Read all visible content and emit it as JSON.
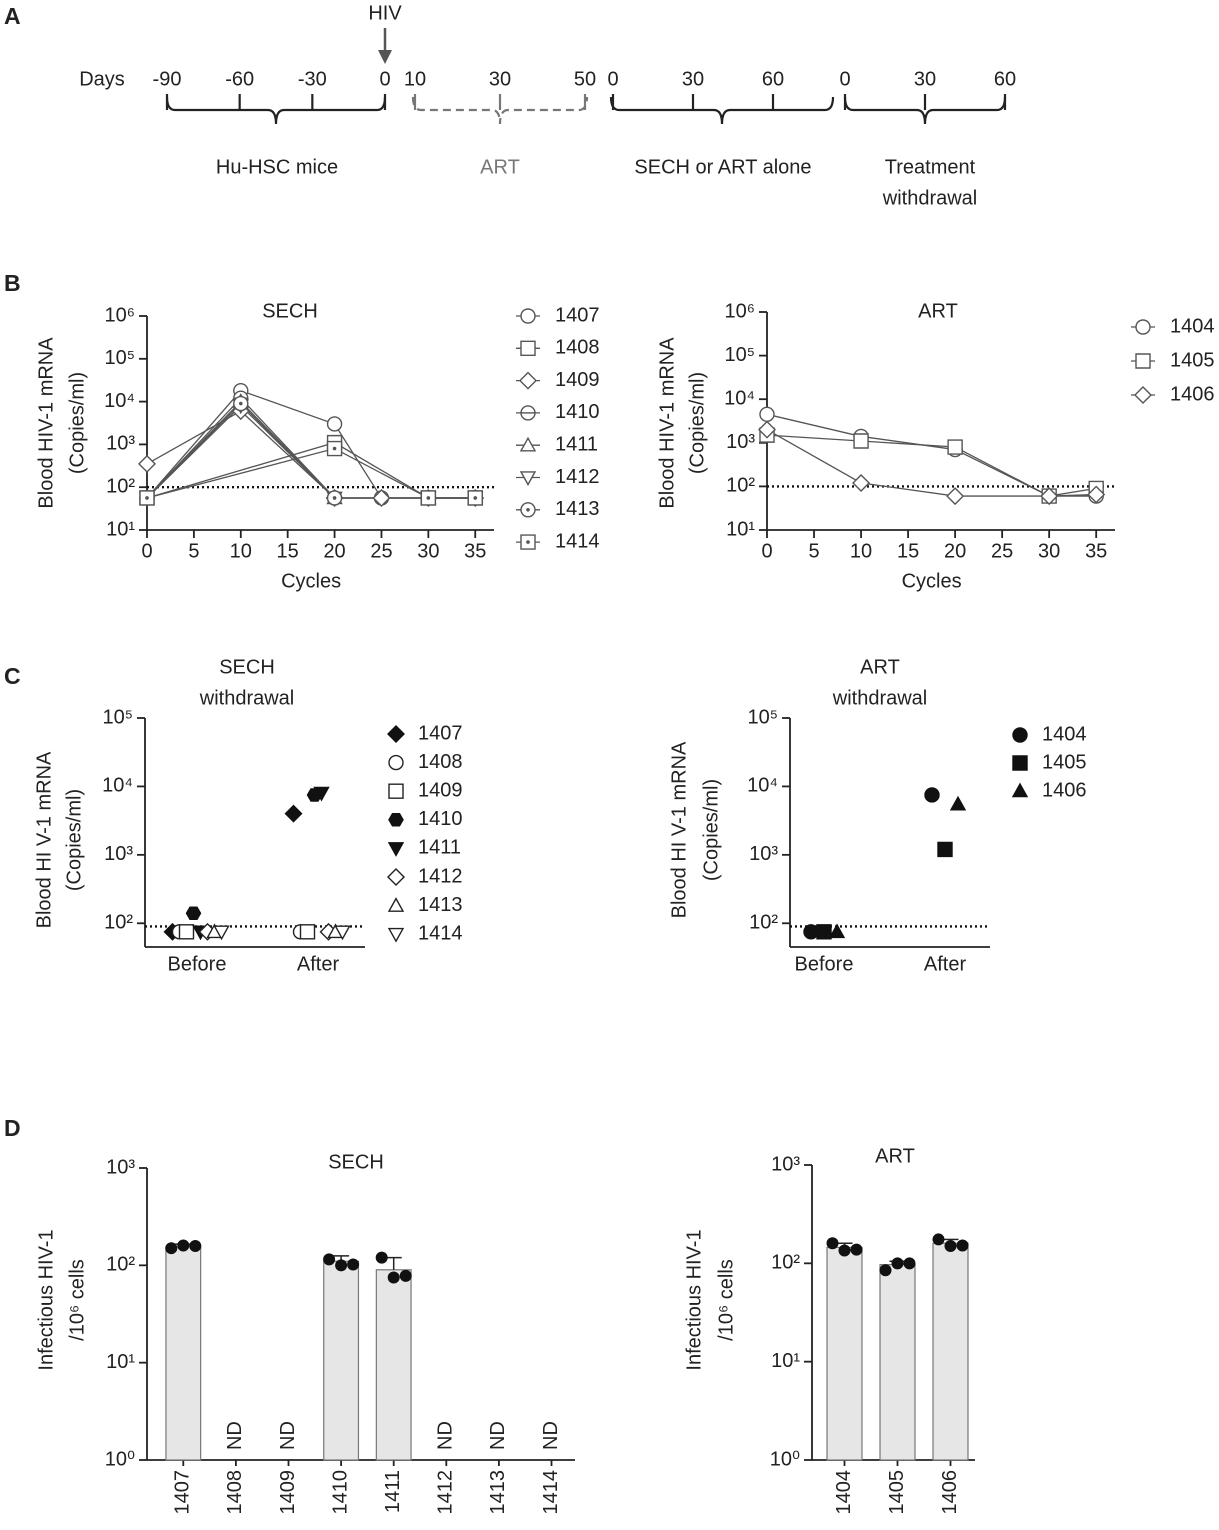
{
  "panel_labels": [
    "A",
    "B",
    "C",
    "D"
  ],
  "timeline": {
    "hiv_label": "HIV",
    "days_label": "Days",
    "segments": [
      {
        "ticks": [
          -90,
          -60,
          -30,
          0
        ],
        "label": [
          "Hu-HSC mice"
        ],
        "style": "solid"
      },
      {
        "ticks": [
          10,
          30,
          50
        ],
        "label": [
          "ART"
        ],
        "style": "dashed"
      },
      {
        "ticks": [
          0,
          30,
          60
        ],
        "label": [
          "SECH or ART alone"
        ],
        "style": "solid"
      },
      {
        "ticks": [
          0,
          30,
          60
        ],
        "label": [
          "Treatment",
          "withdrawal"
        ],
        "style": "solid"
      }
    ]
  },
  "chart_data": [
    {
      "type": "line",
      "title": "SECH",
      "xlabel": "Cycles",
      "ylabel": [
        "Blood HIV-1 mRNA",
        "(Copies/ml)"
      ],
      "xlim": [
        0,
        37
      ],
      "xticks": [
        0,
        5,
        10,
        15,
        20,
        25,
        30,
        35
      ],
      "ylim": [
        10,
        1000000
      ],
      "yscale": "log",
      "yticks": [
        {
          "value": 10,
          "label": "10¹"
        },
        {
          "value": 100,
          "label": "10²"
        },
        {
          "value": 1000,
          "label": "10³"
        },
        {
          "value": 10000,
          "label": "10⁴"
        },
        {
          "value": 100000,
          "label": "10⁵"
        },
        {
          "value": 1000000,
          "label": "10⁶"
        }
      ],
      "reference_line": 100,
      "color": "#555",
      "series": [
        {
          "name": "1407",
          "marker": "circle",
          "x": [
            0,
            10,
            20,
            25,
            30,
            35
          ],
          "values": [
            56,
            18000,
            3000,
            56,
            56,
            56
          ]
        },
        {
          "name": "1408",
          "marker": "square",
          "x": [
            0,
            20,
            30,
            35
          ],
          "values": [
            56,
            1100,
            56,
            56
          ]
        },
        {
          "name": "1409",
          "marker": "diamond",
          "x": [
            0,
            10,
            20,
            25,
            30,
            35
          ],
          "values": [
            350,
            6000,
            56,
            56,
            56,
            56
          ]
        },
        {
          "name": "1410",
          "marker": "circle-line",
          "x": [
            0,
            10,
            20,
            30,
            35
          ],
          "values": [
            56,
            12000,
            56,
            56,
            56
          ]
        },
        {
          "name": "1411",
          "marker": "triangle-up",
          "x": [
            0,
            10,
            20,
            30,
            35
          ],
          "values": [
            56,
            10000,
            56,
            56,
            56
          ]
        },
        {
          "name": "1412",
          "marker": "triangle-down",
          "x": [
            0,
            10,
            20,
            30,
            35
          ],
          "values": [
            56,
            8000,
            56,
            56,
            56
          ]
        },
        {
          "name": "1413",
          "marker": "circle-dot",
          "x": [
            0,
            10,
            20,
            30,
            35
          ],
          "values": [
            56,
            9000,
            56,
            56,
            56
          ]
        },
        {
          "name": "1414",
          "marker": "square-dot",
          "x": [
            0,
            20,
            30,
            35
          ],
          "values": [
            56,
            800,
            56,
            56
          ]
        }
      ]
    },
    {
      "type": "line",
      "title": "ART",
      "xlabel": "Cycles",
      "ylabel": [
        "Blood HIV-1 mRNA",
        "(Copies/ml)"
      ],
      "xlim": [
        0,
        37
      ],
      "xticks": [
        0,
        5,
        10,
        15,
        20,
        25,
        30,
        35
      ],
      "ylim": [
        10,
        1000000
      ],
      "yscale": "log",
      "yticks": [
        {
          "value": 10,
          "label": "10¹"
        },
        {
          "value": 100,
          "label": "10²"
        },
        {
          "value": 1000,
          "label": "10³"
        },
        {
          "value": 10000,
          "label": "10⁴"
        },
        {
          "value": 100000,
          "label": "10⁵"
        },
        {
          "value": 1000000,
          "label": "10⁶"
        }
      ],
      "reference_line": 100,
      "color": "#555",
      "series": [
        {
          "name": "1404",
          "marker": "circle",
          "x": [
            0,
            10,
            20,
            30,
            35
          ],
          "values": [
            4500,
            1400,
            700,
            60,
            60
          ]
        },
        {
          "name": "1405",
          "marker": "square",
          "x": [
            0,
            10,
            20,
            30,
            35
          ],
          "values": [
            1500,
            1100,
            800,
            60,
            90
          ]
        },
        {
          "name": "1406",
          "marker": "diamond",
          "x": [
            0,
            10,
            20,
            30,
            35
          ],
          "values": [
            2000,
            120,
            60,
            60,
            65
          ]
        }
      ]
    },
    {
      "type": "scatter",
      "title": [
        "SECH",
        "withdrawal"
      ],
      "ylabel": [
        "Blood HI V-1 mRNA",
        "(Copies/ml)"
      ],
      "categories": [
        "Before",
        "After"
      ],
      "ylim": [
        45,
        100000
      ],
      "yscale": "log",
      "yticks": [
        {
          "value": 100,
          "label": "10²"
        },
        {
          "value": 1000,
          "label": "10³"
        },
        {
          "value": 10000,
          "label": "10⁴"
        },
        {
          "value": 100000,
          "label": "10⁵"
        }
      ],
      "reference_line": 90,
      "color": "#222",
      "series": [
        {
          "name": "1407",
          "marker": "diamond",
          "filled": true,
          "values": [
            75,
            4000
          ]
        },
        {
          "name": "1408",
          "marker": "circle",
          "filled": false,
          "values": [
            75,
            75
          ]
        },
        {
          "name": "1409",
          "marker": "square",
          "filled": false,
          "values": [
            75,
            75
          ]
        },
        {
          "name": "1410",
          "marker": "hexagon",
          "filled": true,
          "values": [
            140,
            7500
          ]
        },
        {
          "name": "1411",
          "marker": "triangle-down",
          "filled": true,
          "values": [
            75,
            8000
          ]
        },
        {
          "name": "1412",
          "marker": "diamond",
          "filled": false,
          "values": [
            75,
            75
          ]
        },
        {
          "name": "1413",
          "marker": "triangle-up",
          "filled": false,
          "values": [
            75,
            75
          ]
        },
        {
          "name": "1414",
          "marker": "triangle-down",
          "filled": false,
          "values": [
            75,
            75
          ]
        }
      ]
    },
    {
      "type": "scatter",
      "title": [
        "ART",
        "withdrawal"
      ],
      "ylabel": [
        "Blood HI V-1 mRNA",
        "(Copies/ml)"
      ],
      "categories": [
        "Before",
        "After"
      ],
      "ylim": [
        45,
        100000
      ],
      "yscale": "log",
      "yticks": [
        {
          "value": 100,
          "label": "10²"
        },
        {
          "value": 1000,
          "label": "10³"
        },
        {
          "value": 10000,
          "label": "10⁴"
        },
        {
          "value": 100000,
          "label": "10⁵"
        }
      ],
      "reference_line": 90,
      "color": "#222",
      "series": [
        {
          "name": "1404",
          "marker": "circle",
          "filled": true,
          "values": [
            75,
            7500
          ]
        },
        {
          "name": "1405",
          "marker": "square",
          "filled": true,
          "values": [
            75,
            1200
          ]
        },
        {
          "name": "1406",
          "marker": "triangle-up",
          "filled": true,
          "values": [
            75,
            5500
          ]
        }
      ]
    },
    {
      "type": "bar",
      "title": "SECH",
      "ylabel": [
        "Infectious HIV-1",
        "/10⁶ cells"
      ],
      "categories": [
        "1407",
        "1408",
        "1409",
        "1410",
        "1411",
        "1412",
        "1413",
        "1414"
      ],
      "values": [
        155,
        null,
        null,
        110,
        90,
        null,
        null,
        null
      ],
      "value_labels": [
        null,
        "ND",
        "ND",
        null,
        null,
        "ND",
        "ND",
        "ND"
      ],
      "errors": [
        10,
        null,
        null,
        15,
        30,
        null,
        null,
        null
      ],
      "points": [
        [
          150,
          160,
          158
        ],
        [],
        [],
        [
          115,
          100,
          102
        ],
        [
          120,
          75,
          78
        ],
        [],
        [],
        []
      ],
      "ylim": [
        1,
        1000
      ],
      "yscale": "log",
      "yticks": [
        {
          "value": 1,
          "label": "10⁰"
        },
        {
          "value": 10,
          "label": "10¹"
        },
        {
          "value": 100,
          "label": "10²"
        },
        {
          "value": 1000,
          "label": "10³"
        }
      ],
      "color": "#e6e6e6"
    },
    {
      "type": "bar",
      "title": "ART",
      "ylabel": [
        "Infectious HIV-1",
        "/10⁶ cells"
      ],
      "categories": [
        "1404",
        "1405",
        "1406"
      ],
      "values": [
        145,
        97,
        160
      ],
      "errors": [
        15,
        8,
        15
      ],
      "points": [
        [
          160,
          135,
          138
        ],
        [
          85,
          100,
          100
        ],
        [
          175,
          150,
          152
        ]
      ],
      "ylim": [
        1,
        1000
      ],
      "yscale": "log",
      "yticks": [
        {
          "value": 1,
          "label": "10⁰"
        },
        {
          "value": 10,
          "label": "10¹"
        },
        {
          "value": 100,
          "label": "10²"
        },
        {
          "value": 1000,
          "label": "10³"
        }
      ],
      "color": "#e6e6e6"
    }
  ]
}
